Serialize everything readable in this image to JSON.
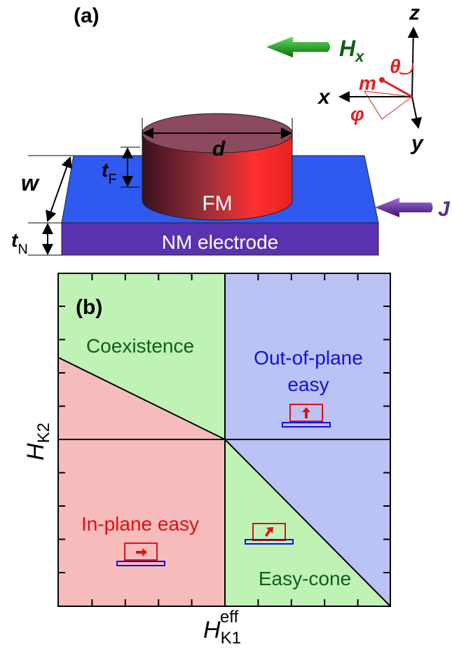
{
  "panel_a": {
    "label": "(a)",
    "field": {
      "main": "H",
      "sub": "x"
    },
    "axis_z": "z",
    "axis_x": "x",
    "axis_y": "y",
    "theta": "θ",
    "phi": "φ",
    "m": "m",
    "d": "d",
    "t_f": {
      "main": "t",
      "sub": "F"
    },
    "w": "w",
    "t_n": {
      "main": "t",
      "sub": "N"
    },
    "fm": "FM",
    "nm": "NM electrode",
    "current": "J"
  },
  "panel_b": {
    "label": "(b)",
    "regions": {
      "coexistence": "Coexistence",
      "out_of_plane": [
        "Out-of-plane",
        "easy"
      ],
      "in_plane": "In-plane easy",
      "easy_cone": "Easy-cone"
    },
    "y_label": {
      "main": "H",
      "sub": "K2"
    },
    "x_label": {
      "main": "H",
      "sub": "K1",
      "sup": "eff"
    }
  }
}
